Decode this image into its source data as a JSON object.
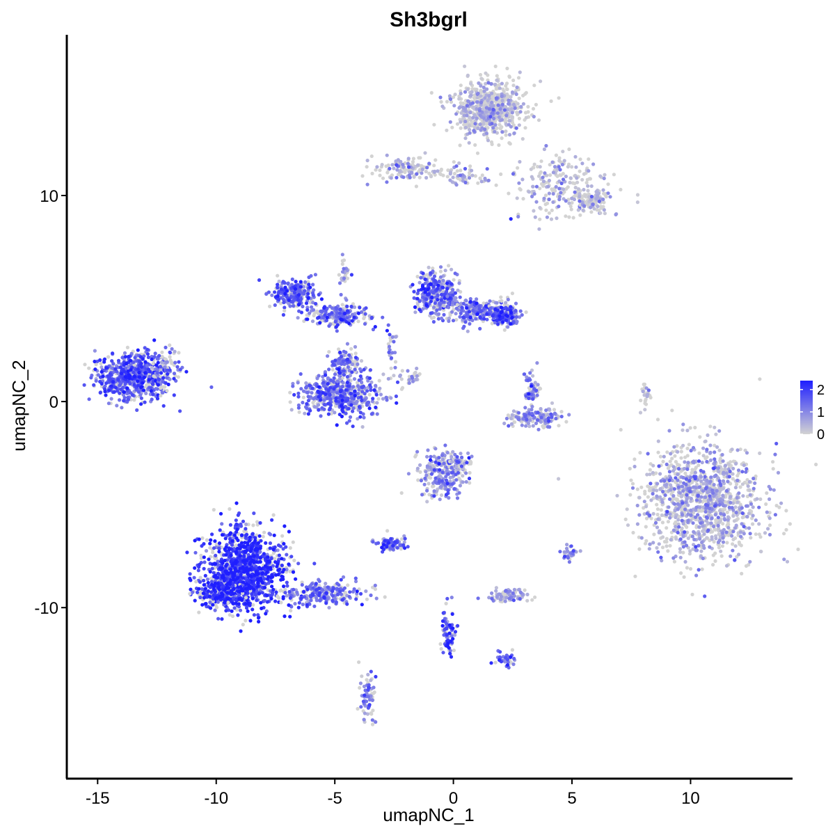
{
  "chart_data": {
    "type": "scatter",
    "title": "Sh3bgrl",
    "xlabel": "umapNC_1",
    "ylabel": "umapNC_2",
    "xlim": [
      -16.3,
      14.3
    ],
    "ylim": [
      -18.3,
      17.8
    ],
    "x_ticks": [
      -15,
      -10,
      -5,
      0,
      5,
      10
    ],
    "x_tick_labels": [
      "-15",
      "-10",
      "-5",
      "0",
      "5",
      "10"
    ],
    "y_ticks": [
      -10,
      0,
      10
    ],
    "y_tick_labels": [
      "-10",
      "0",
      "10"
    ],
    "grid": false,
    "legend": {
      "position": "right",
      "type": "colorbar",
      "ticks": [
        0,
        1,
        2
      ],
      "tick_labels": [
        "0",
        "1",
        "2"
      ],
      "range": [
        0,
        2.4
      ]
    },
    "color_scale": {
      "low": "#d3d3d3",
      "high": "#1f1fff"
    },
    "clusters": [
      {
        "cx": 1.5,
        "cy": 14.2,
        "rx": 1.4,
        "ry": 1.2,
        "n": 700,
        "mean_expr": 0.15
      },
      {
        "cx": 4.5,
        "cy": 10.5,
        "rx": 1.8,
        "ry": 1.5,
        "n": 220,
        "mean_expr": 0.35
      },
      {
        "cx": 5.8,
        "cy": 9.7,
        "rx": 0.6,
        "ry": 0.5,
        "n": 100,
        "mean_expr": 0.2
      },
      {
        "cx": -2.0,
        "cy": 11.3,
        "rx": 1.3,
        "ry": 0.5,
        "n": 120,
        "mean_expr": 0.5
      },
      {
        "cx": 0.5,
        "cy": 11.0,
        "rx": 1.2,
        "ry": 0.4,
        "n": 60,
        "mean_expr": 0.3
      },
      {
        "cx": -13.5,
        "cy": 1.2,
        "rx": 1.4,
        "ry": 1.0,
        "n": 650,
        "mean_expr": 1.5
      },
      {
        "cx": -12.2,
        "cy": 1.6,
        "rx": 0.6,
        "ry": 1.0,
        "n": 80,
        "mean_expr": 1.3
      },
      {
        "cx": -6.7,
        "cy": 5.2,
        "rx": 0.8,
        "ry": 0.6,
        "n": 260,
        "mean_expr": 1.4
      },
      {
        "cx": -5.0,
        "cy": 4.2,
        "rx": 1.3,
        "ry": 0.5,
        "n": 200,
        "mean_expr": 1.2
      },
      {
        "cx": -4.8,
        "cy": 0.3,
        "rx": 1.6,
        "ry": 0.9,
        "n": 500,
        "mean_expr": 1.3
      },
      {
        "cx": -4.5,
        "cy": 1.8,
        "rx": 0.6,
        "ry": 0.7,
        "n": 120,
        "mean_expr": 1.1
      },
      {
        "cx": -0.7,
        "cy": 5.2,
        "rx": 0.8,
        "ry": 1.0,
        "n": 320,
        "mean_expr": 1.4
      },
      {
        "cx": 0.9,
        "cy": 4.4,
        "rx": 1.0,
        "ry": 0.6,
        "n": 200,
        "mean_expr": 1.2
      },
      {
        "cx": 2.2,
        "cy": 4.2,
        "rx": 0.6,
        "ry": 0.5,
        "n": 160,
        "mean_expr": 1.5
      },
      {
        "cx": 3.5,
        "cy": -0.8,
        "rx": 1.0,
        "ry": 0.4,
        "n": 140,
        "mean_expr": 0.8
      },
      {
        "cx": 3.3,
        "cy": 0.6,
        "rx": 0.3,
        "ry": 0.7,
        "n": 60,
        "mean_expr": 1.2
      },
      {
        "cx": 10.5,
        "cy": -4.8,
        "rx": 2.3,
        "ry": 2.5,
        "n": 1200,
        "mean_expr": 0.4
      },
      {
        "cx": -8.8,
        "cy": -8.2,
        "rx": 1.5,
        "ry": 1.8,
        "n": 1100,
        "mean_expr": 2.0
      },
      {
        "cx": -9.8,
        "cy": -9.2,
        "rx": 0.9,
        "ry": 0.6,
        "n": 250,
        "mean_expr": 2.1
      },
      {
        "cx": -5.5,
        "cy": -9.3,
        "rx": 1.6,
        "ry": 0.5,
        "n": 220,
        "mean_expr": 1.3
      },
      {
        "cx": -0.5,
        "cy": -3.5,
        "rx": 0.9,
        "ry": 1.0,
        "n": 240,
        "mean_expr": 0.9
      },
      {
        "cx": -2.6,
        "cy": -6.9,
        "rx": 0.6,
        "ry": 0.3,
        "n": 80,
        "mean_expr": 1.4
      },
      {
        "cx": 2.3,
        "cy": -9.4,
        "rx": 0.8,
        "ry": 0.3,
        "n": 90,
        "mean_expr": 0.6
      },
      {
        "cx": -0.2,
        "cy": -11.3,
        "rx": 0.3,
        "ry": 1.2,
        "n": 80,
        "mean_expr": 1.7
      },
      {
        "cx": 2.2,
        "cy": -12.5,
        "rx": 0.4,
        "ry": 0.3,
        "n": 40,
        "mean_expr": 1.6
      },
      {
        "cx": -3.6,
        "cy": -14.4,
        "rx": 0.3,
        "ry": 1.0,
        "n": 70,
        "mean_expr": 1.1
      },
      {
        "cx": 4.9,
        "cy": -7.4,
        "rx": 0.3,
        "ry": 0.3,
        "n": 30,
        "mean_expr": 0.9
      },
      {
        "cx": 8.1,
        "cy": 0.4,
        "rx": 0.2,
        "ry": 0.6,
        "n": 25,
        "mean_expr": 0.1
      },
      {
        "cx": -4.6,
        "cy": 6.2,
        "rx": 0.2,
        "ry": 1.0,
        "n": 30,
        "mean_expr": 0.8
      },
      {
        "cx": -2.6,
        "cy": 2.6,
        "rx": 0.2,
        "ry": 0.8,
        "n": 25,
        "mean_expr": 0.9
      },
      {
        "cx": -2.0,
        "cy": 1.2,
        "rx": 0.7,
        "ry": 0.3,
        "n": 30,
        "mean_expr": 0.7
      },
      {
        "cx": 0.2,
        "cy": -3.0,
        "rx": 0.4,
        "ry": 0.4,
        "n": 40,
        "mean_expr": 0.7
      }
    ]
  }
}
